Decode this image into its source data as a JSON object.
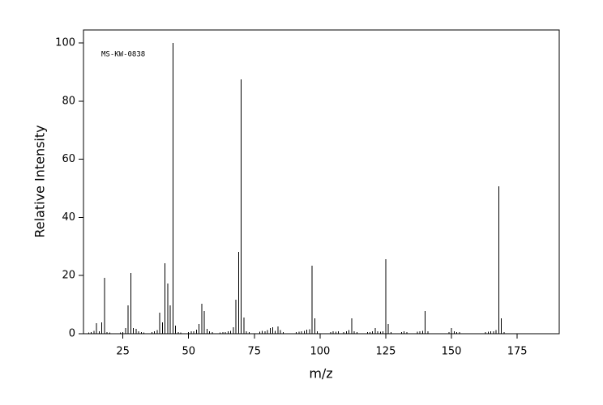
{
  "chart_data": {
    "type": "bar",
    "annotation": "MS-KW-0838",
    "x_label": "m/z",
    "y_label": "Relative Intensity",
    "color": "#000000",
    "x": [
      12,
      13,
      14,
      15,
      16,
      17,
      18,
      19,
      20,
      24,
      25,
      26,
      27,
      28,
      29,
      30,
      31,
      32,
      33,
      36,
      37,
      38,
      39,
      40,
      41,
      42,
      43,
      44,
      45,
      46,
      47,
      50,
      51,
      52,
      53,
      54,
      55,
      56,
      57,
      58,
      59,
      62,
      63,
      64,
      65,
      66,
      67,
      68,
      69,
      70,
      71,
      72,
      73,
      77,
      78,
      79,
      80,
      81,
      82,
      83,
      84,
      85,
      86,
      91,
      92,
      93,
      94,
      95,
      96,
      97,
      98,
      99,
      104,
      105,
      106,
      107,
      109,
      110,
      111,
      112,
      113,
      114,
      118,
      119,
      120,
      121,
      122,
      123,
      124,
      125,
      126,
      127,
      131,
      132,
      133,
      137,
      138,
      139,
      140,
      141,
      149,
      150,
      151,
      152,
      153,
      163,
      164,
      165,
      166,
      167,
      168,
      169,
      170
    ],
    "values": [
      0.4,
      0.6,
      1.0,
      3.6,
      0.8,
      3.9,
      19.2,
      0.5,
      0.4,
      0.4,
      0.6,
      2.0,
      9.7,
      20.9,
      2.0,
      1.7,
      0.8,
      0.6,
      0.4,
      0.5,
      0.8,
      1.2,
      7.2,
      3.9,
      24.2,
      17.3,
      9.7,
      100,
      2.8,
      0.6,
      0.4,
      0.5,
      0.8,
      0.9,
      1.4,
      3.3,
      10.3,
      7.8,
      1.7,
      0.8,
      0.5,
      0.4,
      0.6,
      0.5,
      0.8,
      1.0,
      2.2,
      11.7,
      28.1,
      87.5,
      5.6,
      0.9,
      0.6,
      0.7,
      1.0,
      0.8,
      1.2,
      2.0,
      2.2,
      1.0,
      2.5,
      1.2,
      0.6,
      0.5,
      0.7,
      0.8,
      1.0,
      1.4,
      1.6,
      23.4,
      5.3,
      0.8,
      0.6,
      0.9,
      0.7,
      0.8,
      0.6,
      0.9,
      1.2,
      5.3,
      0.9,
      0.6,
      0.5,
      0.6,
      0.8,
      2.0,
      0.9,
      0.7,
      0.8,
      25.6,
      3.3,
      0.6,
      0.5,
      0.8,
      0.6,
      0.7,
      0.9,
      1.0,
      7.8,
      0.8,
      0.6,
      2.0,
      0.8,
      0.6,
      0.5,
      0.6,
      0.7,
      0.8,
      0.9,
      1.2,
      50.7,
      5.3,
      0.6
    ],
    "xlim": [
      10,
      191
    ],
    "xticks": [
      25,
      50,
      75,
      100,
      125,
      150,
      175
    ],
    "ylim": [
      0,
      104.5
    ],
    "yticks": [
      0,
      20,
      40,
      60,
      80,
      100
    ],
    "grid": false
  }
}
